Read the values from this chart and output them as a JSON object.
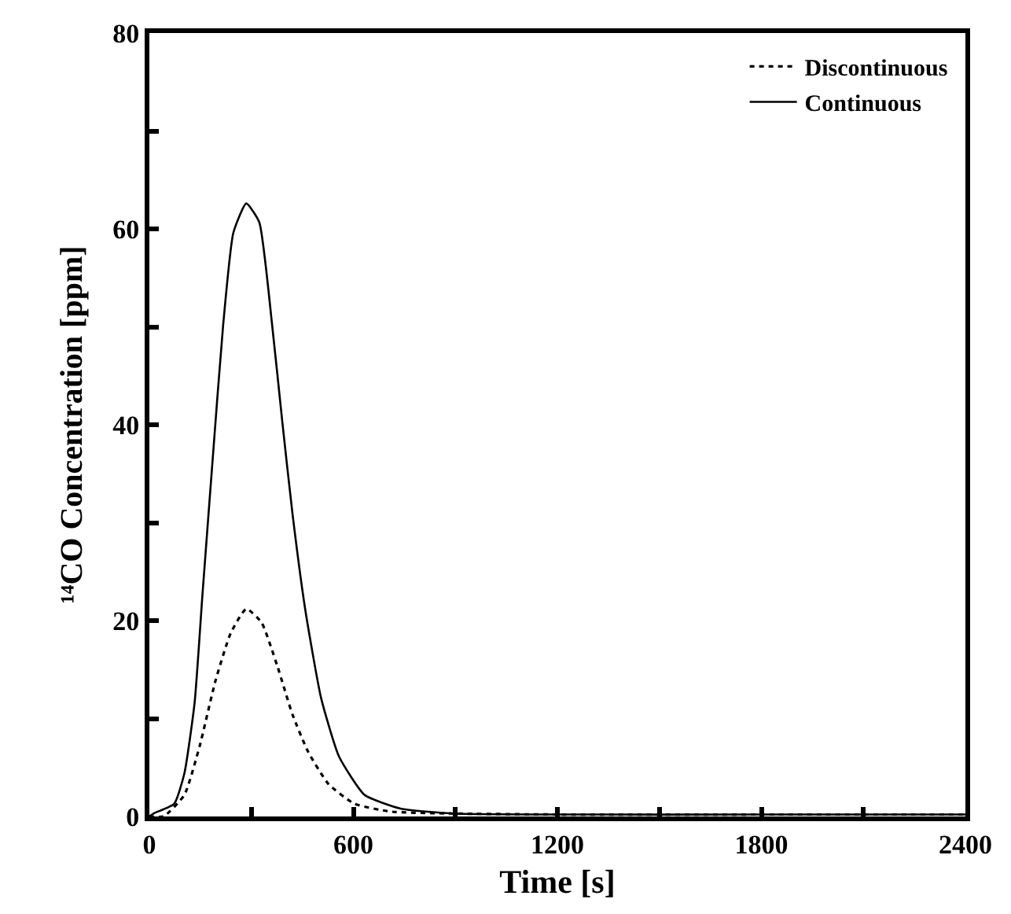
{
  "chart_data": {
    "type": "line",
    "xlabel": "Time [s]",
    "ylabel": "¹⁴CO Concentration [ppm]",
    "xlim": [
      0,
      2400
    ],
    "ylim": [
      0,
      80
    ],
    "xticks": [
      0,
      {
        "value": 300,
        "label": null
      },
      600,
      {
        "value": 900,
        "label": null
      },
      1200,
      {
        "value": 1500,
        "label": null
      },
      1800,
      {
        "value": 2100,
        "label": null
      },
      2400
    ],
    "yticks": [
      0,
      {
        "value": 10,
        "label": null
      },
      20,
      {
        "value": 30,
        "label": null
      },
      40,
      {
        "value": 50,
        "label": null
      },
      60,
      {
        "value": 70,
        "label": null
      },
      80
    ],
    "legend": "top right",
    "marker": "none",
    "series": [
      {
        "name": "Discontinuous",
        "color": "#000000",
        "line_style": "dotted",
        "x": [
          0,
          42,
          103,
          148,
          194,
          239,
          285,
          330,
          376,
          421,
          467,
          527,
          603,
          709,
          891,
          1200,
          1800,
          2400
        ],
        "values": [
          0,
          0,
          2.2,
          7.2,
          13.8,
          18.7,
          21.2,
          19.8,
          15.4,
          10.4,
          6.6,
          3.3,
          1.3,
          0.5,
          0.3,
          0.2,
          0.2,
          0.2
        ]
      },
      {
        "name": "Continuous",
        "color": "#000000",
        "line_style": "solid",
        "x": [
          0,
          12,
          73,
          103,
          133,
          156,
          186,
          217,
          247,
          285,
          323,
          361,
          391,
          421,
          459,
          505,
          558,
          633,
          739,
          891,
          1200,
          1800,
          2400
        ],
        "values": [
          0,
          0.3,
          1.3,
          4.4,
          11.6,
          22.6,
          36.4,
          50.2,
          59.6,
          62.6,
          60.7,
          50.2,
          40.3,
          30.9,
          21,
          12.1,
          6.1,
          2.2,
          0.8,
          0.3,
          0.2,
          0.2,
          0.2
        ]
      }
    ]
  }
}
